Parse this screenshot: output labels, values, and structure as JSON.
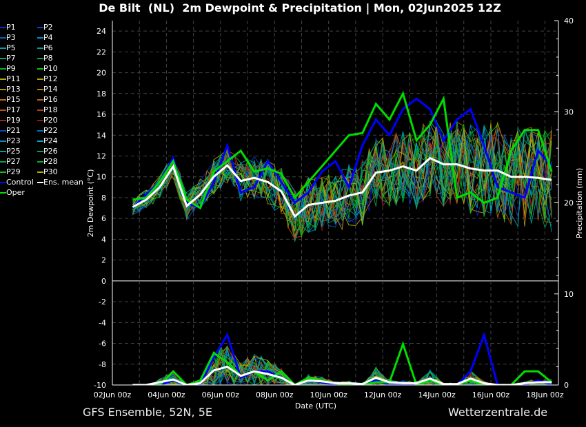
{
  "chart_data": {
    "type": "line",
    "title": "De Bilt  (NL)  2m Dewpoint & Precipitation | Mon, 02Jun2025 12Z",
    "xlabel": "Date (UTC)",
    "ylabel": "2m Dewpoint (°C)",
    "y2label": "Precipitation (mm)",
    "xlim_hours": [
      0,
      396
    ],
    "ylim": [
      -10,
      25
    ],
    "y2lim": [
      0,
      40
    ],
    "x_ticks": [
      {
        "hour": 0,
        "label": "02Jun 00z"
      },
      {
        "hour": 48,
        "label": "04Jun 00z"
      },
      {
        "hour": 96,
        "label": "06Jun 00z"
      },
      {
        "hour": 144,
        "label": "08Jun 00z"
      },
      {
        "hour": 192,
        "label": "10Jun 00z"
      },
      {
        "hour": 240,
        "label": "12Jun 00z"
      },
      {
        "hour": 288,
        "label": "14Jun 00z"
      },
      {
        "hour": 336,
        "label": "16Jun 00z"
      },
      {
        "hour": 384,
        "label": "18Jun 00z"
      }
    ],
    "y_ticks": [
      24,
      22,
      20,
      18,
      16,
      14,
      12,
      10,
      8,
      6,
      4,
      2,
      0,
      -2,
      -4,
      -6,
      -8,
      -10
    ],
    "y2_ticks": [
      0,
      10,
      20,
      30,
      40
    ],
    "grid": true,
    "legend_placement": "left-outside",
    "x_hours": [
      18,
      30,
      42,
      54,
      66,
      78,
      90,
      102,
      114,
      126,
      138,
      150,
      162,
      174,
      186,
      198,
      210,
      222,
      234,
      246,
      258,
      270,
      282,
      294,
      306,
      318,
      330,
      342,
      354,
      366,
      378,
      390
    ],
    "series": [
      {
        "name": "Ens. mean",
        "color": "#ffffff",
        "dewpoint": [
          7.1,
          7.8,
          9.0,
          11.0,
          7.2,
          8.3,
          10.0,
          11.1,
          9.6,
          9.9,
          9.5,
          8.6,
          6.2,
          7.3,
          7.5,
          7.7,
          8.2,
          8.5,
          10.4,
          10.6,
          11.0,
          10.6,
          11.8,
          11.2,
          11.2,
          10.8,
          10.6,
          10.6,
          10.0,
          10.0,
          9.9,
          9.7
        ],
        "precip": [
          0,
          0,
          0.3,
          0.6,
          0,
          0.2,
          1.6,
          2.0,
          1.0,
          1.5,
          1.2,
          0.8,
          0,
          0.5,
          0.4,
          0.2,
          0.2,
          0.1,
          0.8,
          0.3,
          0.2,
          0.2,
          0.7,
          0.1,
          0.1,
          0.7,
          0.2,
          0,
          0,
          0.2,
          0.3,
          0.3
        ]
      },
      {
        "name": "Control",
        "color": "#0000ff",
        "dewpoint": [
          7.0,
          8.3,
          9.5,
          11.8,
          7.5,
          7.0,
          9.5,
          13.0,
          8.5,
          9.0,
          11.5,
          9.5,
          7.5,
          8.5,
          10.5,
          11.5,
          9.0,
          13.0,
          15.5,
          14.0,
          16.5,
          17.5,
          16.5,
          13.5,
          15.5,
          16.5,
          13.0,
          9.0,
          8.5,
          8.0,
          12.5,
          11.0
        ],
        "precip": [
          0,
          0,
          0,
          0.5,
          0,
          0,
          3.0,
          5.5,
          0.8,
          1.5,
          1.5,
          0.8,
          0,
          0.5,
          0.3,
          0,
          0,
          0,
          0.5,
          0,
          0,
          0.2,
          0.5,
          0,
          0,
          1.5,
          5.5,
          0,
          0,
          0,
          0.5,
          0
        ]
      },
      {
        "name": "Oper",
        "color": "#00dd00",
        "dewpoint": [
          7.8,
          8.0,
          9.5,
          11.5,
          7.8,
          7.0,
          10.5,
          11.5,
          12.5,
          10.5,
          10.8,
          10.3,
          8.0,
          9.5,
          11.0,
          12.5,
          14.0,
          14.2,
          17.0,
          15.5,
          18.0,
          13.5,
          15.0,
          17.5,
          8.0,
          8.5,
          7.5,
          8.0,
          12.5,
          14.5,
          14.5,
          10.5
        ],
        "precip": [
          0,
          0,
          0,
          1.5,
          0,
          0.5,
          3.5,
          2.5,
          1.0,
          1.5,
          0.5,
          1.5,
          0,
          0.8,
          0.5,
          0.2,
          0,
          0,
          0.3,
          0.3,
          4.5,
          0,
          0.5,
          0,
          0,
          0.5,
          0,
          0,
          0,
          1.5,
          1.5,
          0.3
        ]
      }
    ],
    "members": [
      {
        "name": "P1",
        "color": "#1020d0"
      },
      {
        "name": "P2",
        "color": "#1040c0"
      },
      {
        "name": "P3",
        "color": "#0060c0"
      },
      {
        "name": "P4",
        "color": "#0090c0"
      },
      {
        "name": "P5",
        "color": "#00a0b0"
      },
      {
        "name": "P6",
        "color": "#00a090"
      },
      {
        "name": "P7",
        "color": "#00a070"
      },
      {
        "name": "P8",
        "color": "#00a050"
      },
      {
        "name": "P9",
        "color": "#00b030"
      },
      {
        "name": "P10",
        "color": "#10c010"
      },
      {
        "name": "P11",
        "color": "#b0b000"
      },
      {
        "name": "P12",
        "color": "#b0a800"
      },
      {
        "name": "P13",
        "color": "#c09000"
      },
      {
        "name": "P14",
        "color": "#c08000"
      },
      {
        "name": "P15",
        "color": "#c07000"
      },
      {
        "name": "P16",
        "color": "#c06010"
      },
      {
        "name": "P17",
        "color": "#c05010"
      },
      {
        "name": "P18",
        "color": "#b04020"
      },
      {
        "name": "P19",
        "color": "#a02020"
      },
      {
        "name": "P20",
        "color": "#901818"
      },
      {
        "name": "P21",
        "color": "#1040c0"
      },
      {
        "name": "P22",
        "color": "#0070c0"
      },
      {
        "name": "P23",
        "color": "#0090c0"
      },
      {
        "name": "P24",
        "color": "#00a8c0"
      },
      {
        "name": "P25",
        "color": "#00a090"
      },
      {
        "name": "P26",
        "color": "#00a070"
      },
      {
        "name": "P27",
        "color": "#00a050"
      },
      {
        "name": "P28",
        "color": "#00b030"
      },
      {
        "name": "P29",
        "color": "#10c010"
      },
      {
        "name": "P30",
        "color": "#b0b000"
      }
    ]
  },
  "footer": {
    "left": "GFS Ensemble, 52N, 5E",
    "right": "Wetterzentrale.de"
  }
}
